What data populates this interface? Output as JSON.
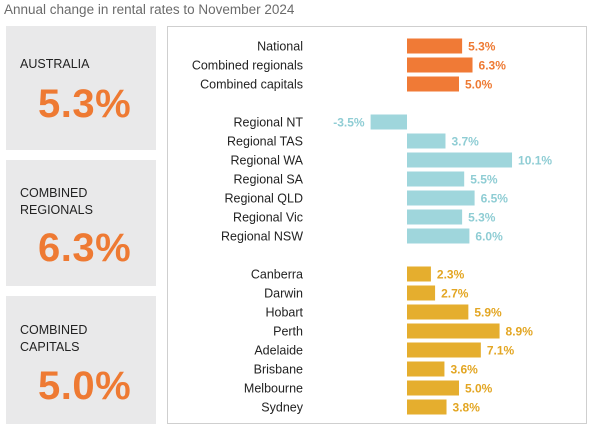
{
  "header": {
    "title": "Annual change in rental rates to November 2024"
  },
  "cards": [
    {
      "label": "AUSTRALIA",
      "value": "5.3%"
    },
    {
      "label": "COMBINED\nREGIONALS",
      "value": "6.3%"
    },
    {
      "label": "COMBINED\nCAPITALS",
      "value": "5.0%"
    }
  ],
  "chart_data": {
    "type": "bar",
    "orientation": "horizontal",
    "title": "Annual change in rental rates to November 2024",
    "xlim": [
      -3.5,
      10.1
    ],
    "grid": false,
    "legend": "none",
    "groups": [
      {
        "color": "#f07a36",
        "label_color": "#ee7a33",
        "categories": [
          "National",
          "Combined regionals",
          "Combined capitals"
        ],
        "values": [
          5.3,
          6.3,
          5.0
        ],
        "labels": [
          "5.3%",
          "6.3%",
          "5.0%"
        ]
      },
      {
        "color": "#9fd6dc",
        "label_color": "#8fcdd4",
        "categories": [
          "Regional NT",
          "Regional TAS",
          "Regional WA",
          "Regional SA",
          "Regional QLD",
          "Regional Vic",
          "Regional NSW"
        ],
        "values": [
          -3.5,
          3.7,
          10.1,
          5.5,
          6.5,
          5.3,
          6.0
        ],
        "labels": [
          "-3.5%",
          "3.7%",
          "10.1%",
          "5.5%",
          "6.5%",
          "5.3%",
          "6.0%"
        ]
      },
      {
        "color": "#e5ae2e",
        "label_color": "#e3a623",
        "categories": [
          "Canberra",
          "Darwin",
          "Hobart",
          "Perth",
          "Adelaide",
          "Brisbane",
          "Melbourne",
          "Sydney"
        ],
        "values": [
          2.3,
          2.7,
          5.9,
          8.9,
          7.1,
          3.6,
          5.0,
          3.8
        ],
        "labels": [
          "2.3%",
          "2.7%",
          "5.9%",
          "8.9%",
          "7.1%",
          "3.6%",
          "5.0%",
          "3.8%"
        ]
      }
    ]
  }
}
